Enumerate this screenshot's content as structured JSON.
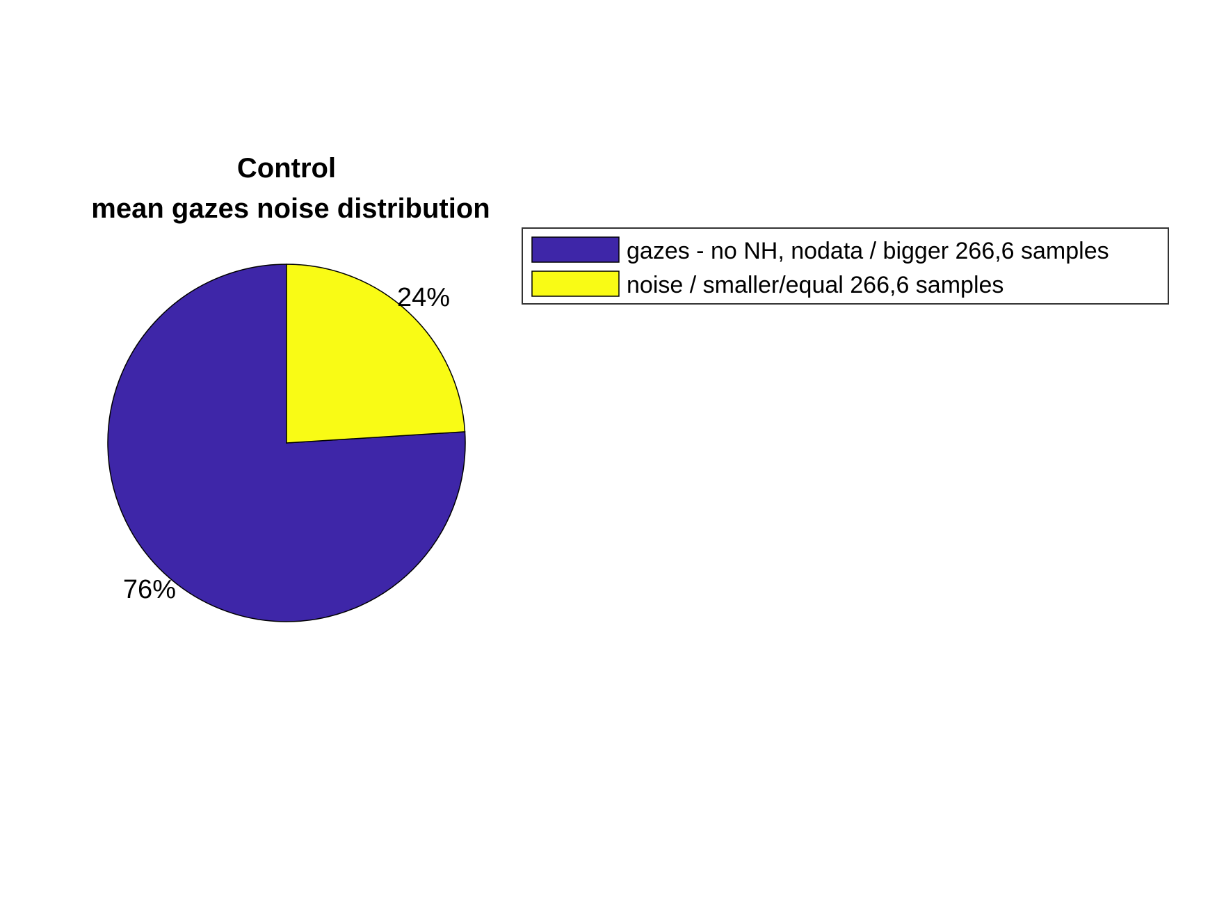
{
  "chart_data": {
    "type": "pie",
    "title": "Control",
    "subtitle": "mean gazes noise distribution",
    "slices": [
      {
        "name": "gazes - no NH, nodata / bigger 266,6 samples",
        "value": 76,
        "label": "76%",
        "color": "#3e26a8"
      },
      {
        "name": "noise / smaller/equal 266,6 samples",
        "value": 24,
        "label": "24%",
        "color": "#f9fb15"
      }
    ],
    "legend_position": "right"
  }
}
